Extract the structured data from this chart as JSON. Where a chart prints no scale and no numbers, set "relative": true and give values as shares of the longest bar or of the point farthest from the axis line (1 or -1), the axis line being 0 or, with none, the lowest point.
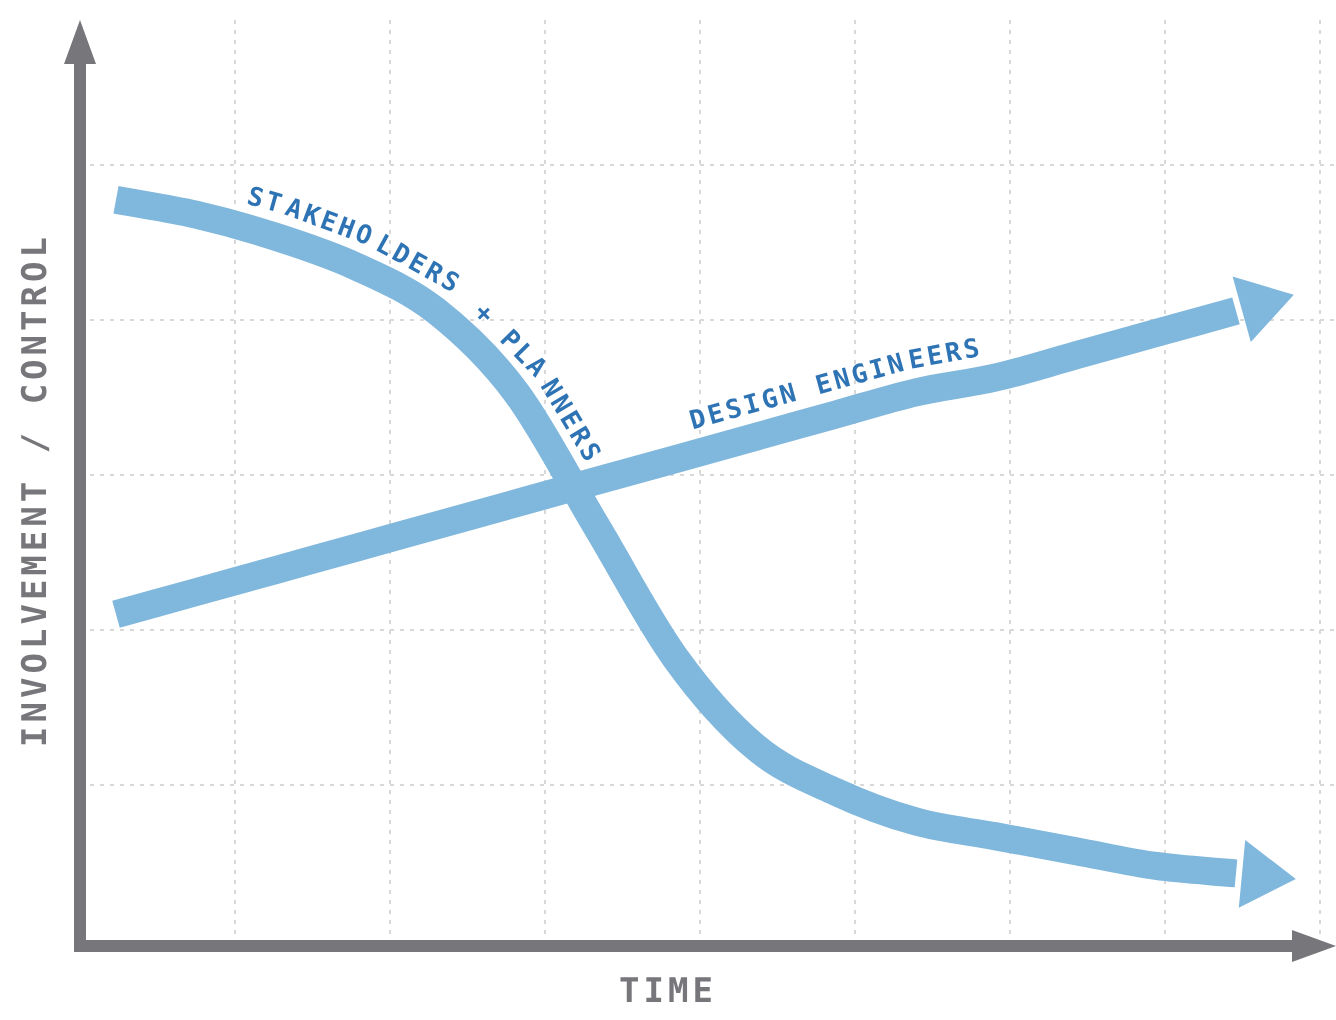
{
  "chart_data": {
    "type": "line",
    "xlabel": "TIME",
    "ylabel": "INVOLVEMENT / CONTROL",
    "relative": true,
    "grid": true,
    "tick_labels": false,
    "legend": false,
    "marker": "none",
    "line_style": "solid",
    "categories": [
      null,
      null,
      null,
      null,
      null,
      null,
      null,
      null,
      null,
      null,
      null,
      null,
      null,
      null,
      null
    ],
    "series": [
      {
        "name": "STAKEHOLDERS + PLANNERS",
        "color": "#80b7dc",
        "values": [
          1,
          0.98,
          0.95,
          0.91,
          0.85,
          0.74,
          0.56,
          0.38,
          0.26,
          0.2,
          0.16,
          0.14,
          0.12,
          0.1,
          0.09
        ]
      },
      {
        "name": "DESIGN ENGINEERS",
        "color": "#80b7dc",
        "values": [
          0.44,
          0.47,
          0.5,
          0.53,
          0.56,
          0.59,
          0.62,
          0.65,
          0.68,
          0.71,
          0.74,
          0.76,
          0.79,
          0.82,
          0.85
        ]
      }
    ]
  }
}
